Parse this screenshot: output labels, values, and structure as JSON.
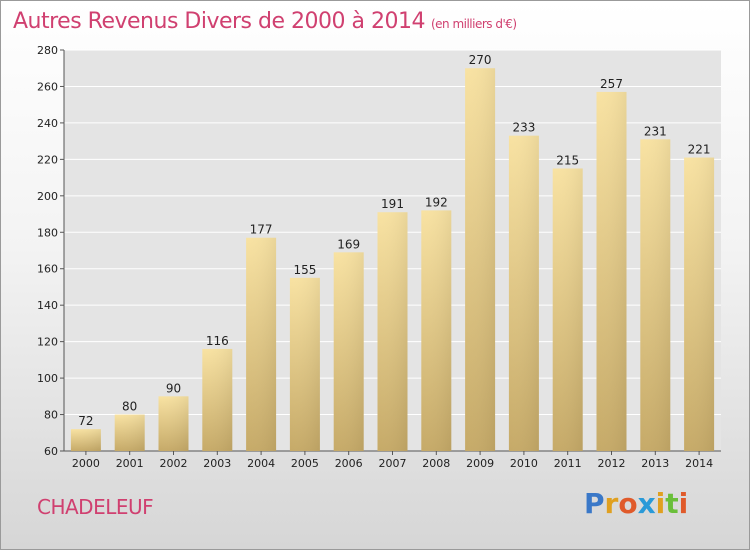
{
  "header": {
    "title": "Autres Revenus Divers de 2000 à 2014",
    "unit": "(en milliers d'€)"
  },
  "footer": {
    "commune": "CHADELEUF",
    "logo_letters": [
      "P",
      "r",
      "o",
      "x",
      "i",
      "t",
      "i"
    ],
    "logo_colors": [
      "#3a78c8",
      "#e0a020",
      "#e05a2a",
      "#2a9ad8",
      "#e0a020",
      "#6abf3a",
      "#e05a2a"
    ]
  },
  "colors": {
    "title": "#d04070",
    "bar_light": "#f6dd9a",
    "bar_dark": "#c9ad6a",
    "grid": "#ffffff",
    "plot_bg": "#e4e4e4"
  },
  "chart_data": {
    "type": "bar",
    "categories": [
      "2000",
      "2001",
      "2002",
      "2003",
      "2004",
      "2005",
      "2006",
      "2007",
      "2008",
      "2009",
      "2010",
      "2011",
      "2012",
      "2013",
      "2014"
    ],
    "values": [
      72,
      80,
      90,
      116,
      177,
      155,
      169,
      191,
      192,
      270,
      233,
      215,
      257,
      231,
      221
    ],
    "ylim": [
      60,
      280
    ],
    "yticks": [
      60,
      80,
      100,
      120,
      140,
      160,
      180,
      200,
      220,
      240,
      260,
      280
    ],
    "grid": true,
    "legend": "none"
  }
}
